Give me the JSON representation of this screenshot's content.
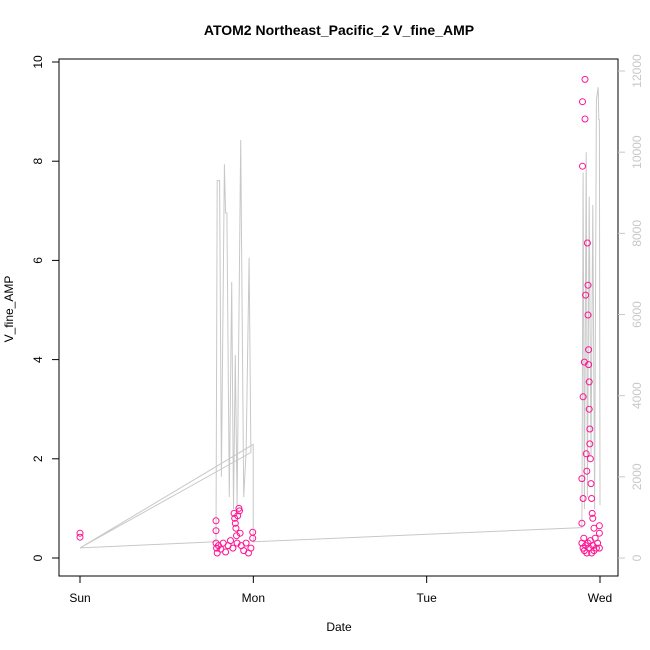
{
  "chart_data": {
    "type": "scatter",
    "title": "ATOM2 Northeast_Pacific_2 V_fine_AMP",
    "xlabel": "Date",
    "ylabel": "V_fine_AMP",
    "x_axis": {
      "kind": "date",
      "ticks": [
        "Sun",
        "Mon",
        "Tue",
        "Wed"
      ],
      "xlim": [
        "Sun 00:00",
        "Wed 00:00"
      ]
    },
    "ylim": [
      0,
      10
    ],
    "yticks": [
      0,
      2,
      4,
      6,
      8,
      10
    ],
    "y2lim": [
      0,
      12000
    ],
    "y2ticks": [
      0,
      2000,
      4000,
      6000,
      8000,
      10000,
      12000
    ],
    "colors": {
      "points": "#ff1493",
      "secondary_line": "#c8c8c8",
      "axis": "#000000"
    },
    "grid": false,
    "series": [
      {
        "kind": "points",
        "axis": "left",
        "points": [
          {
            "x": "Sun 00:00",
            "y": 0.5
          },
          {
            "x": "Sun 00:00",
            "y": 0.42
          },
          {
            "x": "Sun 18:50",
            "y": 0.75
          },
          {
            "x": "Sun 18:50",
            "y": 0.55
          },
          {
            "x": "Sun 18:50",
            "y": 0.3
          },
          {
            "x": "Sun 18:55",
            "y": 0.2
          },
          {
            "x": "Sun 19:00",
            "y": 0.1
          },
          {
            "x": "Sun 19:10",
            "y": 0.25
          },
          {
            "x": "Sun 19:30",
            "y": 0.18
          },
          {
            "x": "Sun 19:50",
            "y": 0.3
          },
          {
            "x": "Sun 20:10",
            "y": 0.12
          },
          {
            "x": "Sun 20:30",
            "y": 0.25
          },
          {
            "x": "Sun 20:50",
            "y": 0.35
          },
          {
            "x": "Sun 21:10",
            "y": 0.2
          },
          {
            "x": "Sun 21:20",
            "y": 0.9
          },
          {
            "x": "Sun 21:25",
            "y": 0.8
          },
          {
            "x": "Sun 21:30",
            "y": 0.7
          },
          {
            "x": "Sun 21:35",
            "y": 0.6
          },
          {
            "x": "Sun 21:40",
            "y": 0.45
          },
          {
            "x": "Sun 21:45",
            "y": 0.3
          },
          {
            "x": "Sun 21:50",
            "y": 0.85
          },
          {
            "x": "Sun 22:00",
            "y": 1.0
          },
          {
            "x": "Sun 22:05",
            "y": 0.95
          },
          {
            "x": "Sun 22:10",
            "y": 0.5
          },
          {
            "x": "Sun 22:20",
            "y": 0.25
          },
          {
            "x": "Sun 22:40",
            "y": 0.15
          },
          {
            "x": "Sun 23:00",
            "y": 0.3
          },
          {
            "x": "Sun 23:20",
            "y": 0.1
          },
          {
            "x": "Sun 23:40",
            "y": 0.2
          },
          {
            "x": "Sun 23:55",
            "y": 0.52
          },
          {
            "x": "Sun 23:55",
            "y": 0.4
          },
          {
            "x": "Tue 21:30",
            "y": 0.7
          },
          {
            "x": "Tue 21:30",
            "y": 1.6
          },
          {
            "x": "Tue 21:35",
            "y": 9.2
          },
          {
            "x": "Tue 21:35",
            "y": 7.9
          },
          {
            "x": "Tue 21:40",
            "y": 3.25
          },
          {
            "x": "Tue 21:40",
            "y": 1.2
          },
          {
            "x": "Tue 21:45",
            "y": 0.4
          },
          {
            "x": "Tue 21:50",
            "y": 3.95
          },
          {
            "x": "Tue 21:55",
            "y": 8.85
          },
          {
            "x": "Tue 21:55",
            "y": 9.65
          },
          {
            "x": "Tue 22:00",
            "y": 5.3
          },
          {
            "x": "Tue 22:05",
            "y": 2.1
          },
          {
            "x": "Tue 22:10",
            "y": 1.75
          },
          {
            "x": "Tue 22:15",
            "y": 6.35
          },
          {
            "x": "Tue 22:20",
            "y": 5.5
          },
          {
            "x": "Tue 22:20",
            "y": 4.9
          },
          {
            "x": "Tue 22:25",
            "y": 4.2
          },
          {
            "x": "Tue 22:25",
            "y": 3.9
          },
          {
            "x": "Tue 22:30",
            "y": 3.55
          },
          {
            "x": "Tue 22:30",
            "y": 3.0
          },
          {
            "x": "Tue 22:35",
            "y": 2.6
          },
          {
            "x": "Tue 22:35",
            "y": 2.3
          },
          {
            "x": "Tue 22:40",
            "y": 2.0
          },
          {
            "x": "Tue 22:45",
            "y": 1.5
          },
          {
            "x": "Tue 22:50",
            "y": 1.2
          },
          {
            "x": "Tue 22:55",
            "y": 0.9
          },
          {
            "x": "Tue 23:00",
            "y": 0.8
          },
          {
            "x": "Tue 23:10",
            "y": 0.6
          },
          {
            "x": "Tue 21:30",
            "y": 0.3
          },
          {
            "x": "Tue 21:40",
            "y": 0.2
          },
          {
            "x": "Tue 21:50",
            "y": 0.15
          },
          {
            "x": "Tue 22:00",
            "y": 0.25
          },
          {
            "x": "Tue 22:10",
            "y": 0.1
          },
          {
            "x": "Tue 22:20",
            "y": 0.3
          },
          {
            "x": "Tue 22:30",
            "y": 0.2
          },
          {
            "x": "Tue 22:40",
            "y": 0.35
          },
          {
            "x": "Tue 22:50",
            "y": 0.1
          },
          {
            "x": "Tue 23:00",
            "y": 0.25
          },
          {
            "x": "Tue 23:10",
            "y": 0.15
          },
          {
            "x": "Tue 23:20",
            "y": 0.4
          },
          {
            "x": "Tue 23:30",
            "y": 0.2
          },
          {
            "x": "Tue 23:40",
            "y": 0.3
          },
          {
            "x": "Tue 23:55",
            "y": 0.65
          },
          {
            "x": "Tue 23:55",
            "y": 0.5
          },
          {
            "x": "Tue 23:55",
            "y": 0.2
          }
        ]
      },
      {
        "kind": "line",
        "axis": "right",
        "points": [
          {
            "x": "Sun 00:00",
            "y": 250
          },
          {
            "x": "Sun 18:50",
            "y": 400
          },
          {
            "x": "Sun 19:00",
            "y": 9300
          },
          {
            "x": "Sun 19:20",
            "y": 9300
          },
          {
            "x": "Sun 19:35",
            "y": 2000
          },
          {
            "x": "Sun 20:00",
            "y": 9700
          },
          {
            "x": "Sun 20:10",
            "y": 8500
          },
          {
            "x": "Sun 20:20",
            "y": 8500
          },
          {
            "x": "Sun 20:40",
            "y": 1500
          },
          {
            "x": "Sun 21:00",
            "y": 6800
          },
          {
            "x": "Sun 21:15",
            "y": 1200
          },
          {
            "x": "Sun 21:30",
            "y": 5000
          },
          {
            "x": "Sun 21:45",
            "y": 1300
          },
          {
            "x": "Sun 22:15",
            "y": 10300
          },
          {
            "x": "Sun 22:40",
            "y": 1500
          },
          {
            "x": "Sun 23:00",
            "y": 2600
          },
          {
            "x": "Sun 23:25",
            "y": 7400
          },
          {
            "x": "Sun 23:40",
            "y": 2600
          },
          {
            "x": "Sun 00:00",
            "y": 250
          },
          {
            "x": "Sun 23:59",
            "y": 2800
          },
          {
            "x": "Sun 23:59",
            "y": 400
          },
          {
            "x": "Tue 21:30",
            "y": 750
          },
          {
            "x": "Tue 21:40",
            "y": 9500
          },
          {
            "x": "Tue 21:50",
            "y": 1200
          },
          {
            "x": "Tue 22:05",
            "y": 10000
          },
          {
            "x": "Tue 22:15",
            "y": 1500
          },
          {
            "x": "Tue 22:30",
            "y": 8900
          },
          {
            "x": "Tue 22:45",
            "y": 2500
          },
          {
            "x": "Tue 23:00",
            "y": 8700
          },
          {
            "x": "Tue 23:15",
            "y": 1200
          },
          {
            "x": "Tue 23:30",
            "y": 11300
          },
          {
            "x": "Tue 23:45",
            "y": 11600
          },
          {
            "x": "Tue 23:50",
            "y": 10800
          },
          {
            "x": "Tue 23:55",
            "y": 10800
          },
          {
            "x": "Wed 00:00",
            "y": 1300
          }
        ]
      }
    ]
  }
}
